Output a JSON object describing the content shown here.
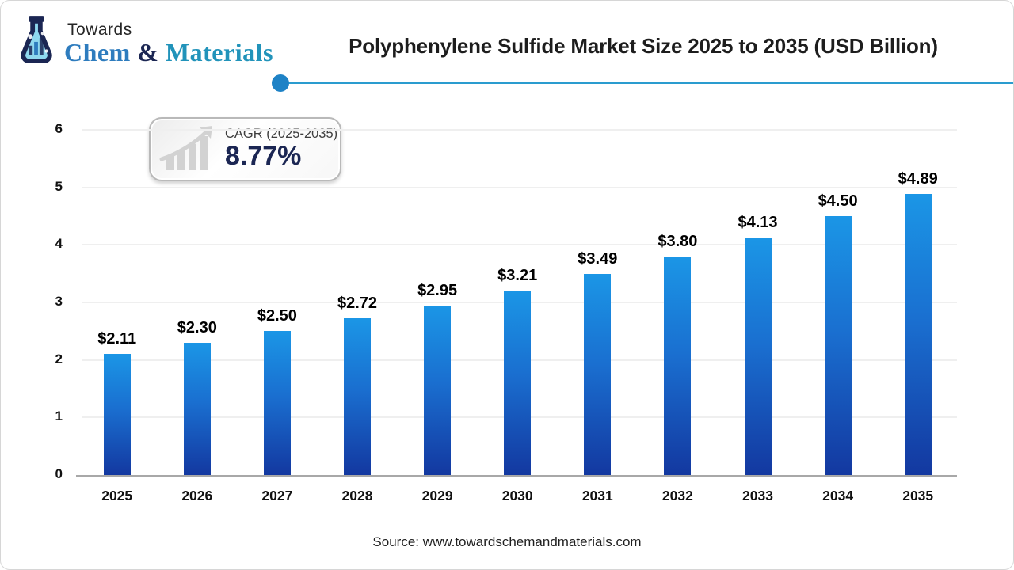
{
  "logo": {
    "towards": "Towards",
    "chem": "Chem",
    "amp": " & ",
    "materials": "Materials"
  },
  "header": {
    "title": "Polyphenylene Sulfide Market Size 2025 to 2035 (USD Billion)"
  },
  "badge": {
    "label": "CAGR (2025-2035)",
    "value": "8.77%"
  },
  "footer": {
    "source": "Source: www.towardschemandmaterials.com"
  },
  "colors": {
    "bar_top": "#1b96e6",
    "bar_bottom": "#1338a0",
    "header_rule": "#2a9ccf",
    "header_dot": "#1e82c6",
    "badge_value": "#1b2653",
    "gridline": "#efefef",
    "axis_line": "#a8a8a8",
    "logo_navy": "#1b2653",
    "logo_chem_blue": "#2e7cbe",
    "logo_materials_teal": "#2193ba"
  },
  "chart_data": {
    "type": "bar",
    "title": "Polyphenylene Sulfide Market Size 2025 to 2035 (USD Billion)",
    "categories": [
      "2025",
      "2026",
      "2027",
      "2028",
      "2029",
      "2030",
      "2031",
      "2032",
      "2033",
      "2034",
      "2035"
    ],
    "values": [
      2.11,
      2.3,
      2.5,
      2.72,
      2.95,
      3.21,
      3.49,
      3.8,
      4.13,
      4.5,
      4.89
    ],
    "data_labels": [
      "$2.11",
      "$2.30",
      "$2.50",
      "$2.72",
      "$2.95",
      "$3.21",
      "$3.49",
      "$3.80",
      "$4.13",
      "$4.50",
      "$4.89"
    ],
    "xlabel": "",
    "ylabel": "",
    "ylim": [
      0,
      6
    ],
    "yticks": [
      0,
      1,
      2,
      3,
      4,
      5,
      6
    ],
    "grid": true,
    "legend": "none",
    "unit": "USD Billion"
  }
}
